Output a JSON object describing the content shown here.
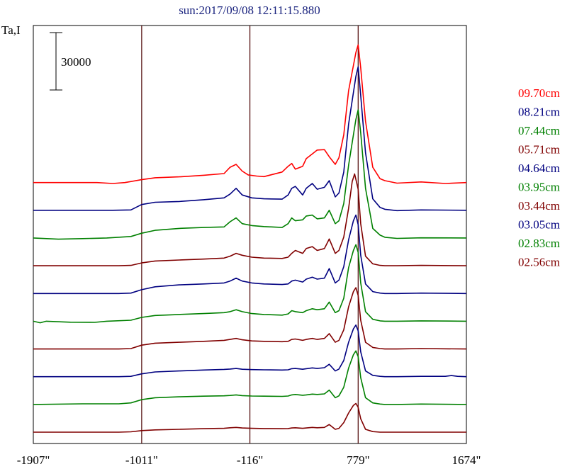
{
  "chart_data": {
    "type": "line",
    "title": "sun:2017/09/08 12:11:15.880",
    "ylabel": "Ta,I",
    "scale_bar_label": "30000",
    "x_ticks": [
      "-1907\"",
      "-1011\"",
      "-116\"",
      "779\"",
      "1674\""
    ],
    "x_tick_values": [
      -1907,
      -1011,
      -116,
      779,
      1674
    ],
    "xlim": [
      -1907,
      1674
    ],
    "vertical_lines": [
      -1011,
      -116,
      779
    ],
    "scale_bar_value": 30000,
    "series_gap": 14500,
    "series": [
      {
        "name": "09.70cm",
        "color": "#ff0000",
        "x": [
          -1907,
          -1380,
          -1250,
          -1150,
          -1011,
          -900,
          -700,
          -500,
          -330,
          -280,
          -230,
          -180,
          -130,
          -60,
          0,
          150,
          200,
          230,
          260,
          320,
          350,
          400,
          440,
          500,
          540,
          590,
          620,
          660,
          700,
          760,
          779,
          800,
          840,
          900,
          960,
          1000,
          1100,
          1300,
          1500,
          1674
        ],
        "y": [
          0,
          0,
          -500,
          0,
          1500,
          2500,
          3000,
          3800,
          4700,
          8000,
          9500,
          6000,
          4000,
          3400,
          3100,
          5500,
          8500,
          10000,
          7000,
          8500,
          12500,
          15000,
          17000,
          17200,
          13500,
          9500,
          13000,
          25000,
          48000,
          68000,
          72000,
          60000,
          32000,
          8000,
          2000,
          1000,
          -300,
          300,
          -500,
          0
        ]
      },
      {
        "name": "08.21cm",
        "color": "#000080",
        "x": [
          -1907,
          -1250,
          -1100,
          -1011,
          -900,
          -700,
          -500,
          -330,
          -280,
          -230,
          -180,
          -100,
          0,
          150,
          200,
          230,
          260,
          320,
          350,
          400,
          440,
          500,
          540,
          590,
          620,
          660,
          700,
          760,
          779,
          800,
          840,
          900,
          960,
          1000,
          1100,
          1300,
          1674
        ],
        "y": [
          0,
          0,
          200,
          3000,
          4200,
          4600,
          5500,
          6500,
          8500,
          11500,
          8000,
          6500,
          6000,
          5800,
          8000,
          11500,
          12500,
          8000,
          11500,
          14000,
          11000,
          12000,
          15500,
          7000,
          9000,
          20000,
          45000,
          70000,
          75000,
          60000,
          30000,
          6000,
          1500,
          500,
          -200,
          200,
          0
        ]
      },
      {
        "name": "07.44cm",
        "color": "#008000",
        "x": [
          -1907,
          -1700,
          -1500,
          -1300,
          -1100,
          -1011,
          -900,
          -700,
          -500,
          -330,
          -280,
          -230,
          -180,
          -100,
          0,
          150,
          200,
          230,
          260,
          320,
          350,
          400,
          440,
          500,
          540,
          590,
          620,
          660,
          700,
          760,
          779,
          800,
          840,
          900,
          960,
          1000,
          1100,
          1300,
          1674
        ],
        "y": [
          0,
          -600,
          -300,
          0,
          800,
          2500,
          4000,
          5000,
          5500,
          5800,
          8500,
          10500,
          7500,
          6500,
          6000,
          5500,
          7500,
          10500,
          9000,
          9500,
          11500,
          12000,
          10000,
          10500,
          14500,
          7500,
          9000,
          18000,
          38000,
          62000,
          67000,
          55000,
          26000,
          5000,
          1500,
          400,
          -200,
          100,
          0
        ]
      },
      {
        "name": "05.71cm",
        "color": "#800000",
        "x": [
          -1907,
          -1200,
          -1100,
          -1011,
          -900,
          -700,
          -500,
          -330,
          -280,
          -230,
          -180,
          -100,
          0,
          150,
          200,
          230,
          260,
          320,
          350,
          400,
          440,
          500,
          540,
          590,
          620,
          660,
          700,
          730,
          750,
          779,
          800,
          840,
          900,
          960,
          1000,
          1100,
          1300,
          1674
        ],
        "y": [
          0,
          0,
          200,
          1500,
          2500,
          3000,
          3500,
          4000,
          5000,
          6500,
          5500,
          4500,
          4000,
          3800,
          4500,
          6500,
          8000,
          6500,
          9000,
          10000,
          8000,
          9000,
          14000,
          6500,
          8000,
          15000,
          30000,
          44000,
          48000,
          40000,
          22000,
          5000,
          1000,
          200,
          0,
          0,
          200,
          0
        ]
      },
      {
        "name": "04.64cm",
        "color": "#000080",
        "x": [
          -1907,
          -1200,
          -1100,
          -1011,
          -900,
          -700,
          -500,
          -330,
          -280,
          -230,
          -180,
          -100,
          0,
          150,
          200,
          230,
          260,
          320,
          350,
          400,
          440,
          500,
          540,
          590,
          620,
          660,
          700,
          740,
          760,
          779,
          800,
          840,
          900,
          960,
          1000,
          1100,
          1300,
          1674
        ],
        "y": [
          0,
          0,
          200,
          2000,
          3500,
          4500,
          5000,
          5500,
          6500,
          8000,
          6500,
          5500,
          5000,
          4700,
          5000,
          6500,
          7000,
          6000,
          7500,
          8500,
          7500,
          8000,
          13000,
          5500,
          7000,
          14000,
          28000,
          38000,
          41000,
          36000,
          20000,
          5000,
          1000,
          200,
          0,
          0,
          200,
          0
        ]
      },
      {
        "name": "03.95cm",
        "color": "#008000",
        "x": [
          -1907,
          -1850,
          -1800,
          -1600,
          -1400,
          -1300,
          -1100,
          -1011,
          -900,
          -700,
          -500,
          -330,
          -280,
          -230,
          -180,
          -100,
          0,
          150,
          200,
          230,
          260,
          320,
          350,
          400,
          440,
          500,
          540,
          590,
          620,
          660,
          700,
          740,
          760,
          779,
          800,
          840,
          900,
          960,
          1000,
          1100,
          1300,
          1674
        ],
        "y": [
          0,
          -800,
          0,
          -500,
          -600,
          0,
          500,
          2000,
          3000,
          3500,
          4000,
          4500,
          5000,
          6000,
          5000,
          4000,
          3500,
          3200,
          3800,
          5500,
          5000,
          4500,
          5500,
          6500,
          6000,
          6500,
          10000,
          4500,
          5500,
          12000,
          28000,
          37000,
          40000,
          36000,
          20000,
          5000,
          1000,
          200,
          0,
          0,
          200,
          0
        ]
      },
      {
        "name": "03.44cm",
        "color": "#800000",
        "x": [
          -1907,
          -1200,
          -1100,
          -1011,
          -900,
          -700,
          -500,
          -330,
          -280,
          -230,
          -180,
          -100,
          0,
          150,
          200,
          230,
          260,
          320,
          350,
          400,
          440,
          500,
          540,
          590,
          620,
          660,
          700,
          740,
          760,
          779,
          800,
          840,
          900,
          960,
          1000,
          1100,
          1300,
          1674
        ],
        "y": [
          0,
          0,
          200,
          2000,
          3000,
          3500,
          4000,
          4500,
          5000,
          5500,
          4800,
          4200,
          4000,
          3800,
          4000,
          5000,
          5200,
          4500,
          5000,
          5500,
          5000,
          5500,
          8000,
          3500,
          4500,
          10000,
          22000,
          30000,
          32000,
          28000,
          15000,
          3500,
          800,
          200,
          0,
          0,
          200,
          0
        ]
      },
      {
        "name": "03.05cm",
        "color": "#000080",
        "x": [
          -1907,
          -1200,
          -1100,
          -1011,
          -900,
          -700,
          -500,
          -330,
          -280,
          -230,
          -180,
          -100,
          0,
          150,
          200,
          230,
          260,
          320,
          350,
          400,
          440,
          500,
          540,
          590,
          620,
          660,
          700,
          740,
          760,
          779,
          800,
          840,
          900,
          960,
          1000,
          1100,
          1300,
          1500,
          1550,
          1600,
          1674
        ],
        "y": [
          0,
          0,
          200,
          1500,
          2500,
          3000,
          3500,
          3800,
          4000,
          4300,
          3900,
          3700,
          3600,
          3500,
          3600,
          4200,
          4300,
          3900,
          4200,
          4600,
          4300,
          4700,
          6500,
          3000,
          4000,
          8500,
          18000,
          25000,
          27000,
          24000,
          13000,
          3000,
          700,
          200,
          0,
          0,
          200,
          200,
          600,
          200,
          0
        ]
      },
      {
        "name": "02.83cm",
        "color": "#008000",
        "x": [
          -1907,
          -1500,
          -1200,
          -1100,
          -1011,
          -900,
          -700,
          -500,
          -330,
          -280,
          -230,
          -180,
          -100,
          0,
          150,
          200,
          230,
          260,
          320,
          350,
          400,
          440,
          500,
          540,
          590,
          620,
          660,
          700,
          740,
          760,
          779,
          800,
          840,
          900,
          960,
          1000,
          1100,
          1300,
          1674
        ],
        "y": [
          0,
          300,
          300,
          800,
          2500,
          3500,
          4000,
          4300,
          4500,
          4700,
          5000,
          4600,
          4400,
          4300,
          4200,
          4400,
          5000,
          5200,
          4800,
          5000,
          5400,
          5200,
          5500,
          7500,
          3500,
          4500,
          9000,
          19000,
          26000,
          28000,
          25000,
          14000,
          3500,
          800,
          200,
          0,
          0,
          200,
          0
        ]
      },
      {
        "name": "02.56cm",
        "color": "#800000",
        "x": [
          -1907,
          -1200,
          -1100,
          -1011,
          -900,
          -700,
          -500,
          -330,
          -280,
          -230,
          -180,
          -100,
          0,
          150,
          200,
          230,
          260,
          320,
          350,
          400,
          440,
          500,
          540,
          590,
          620,
          660,
          700,
          740,
          760,
          779,
          800,
          840,
          900,
          960,
          1000,
          1100,
          1300,
          1674
        ],
        "y": [
          0,
          0,
          200,
          800,
          1200,
          1500,
          1800,
          2000,
          2300,
          2500,
          2200,
          2000,
          1900,
          1800,
          1900,
          2200,
          2300,
          2000,
          2200,
          2500,
          2300,
          2500,
          4000,
          1500,
          2000,
          5000,
          10000,
          14000,
          15000,
          13000,
          7000,
          1500,
          300,
          0,
          0,
          0,
          0,
          0
        ]
      }
    ],
    "legend_position": "right"
  }
}
